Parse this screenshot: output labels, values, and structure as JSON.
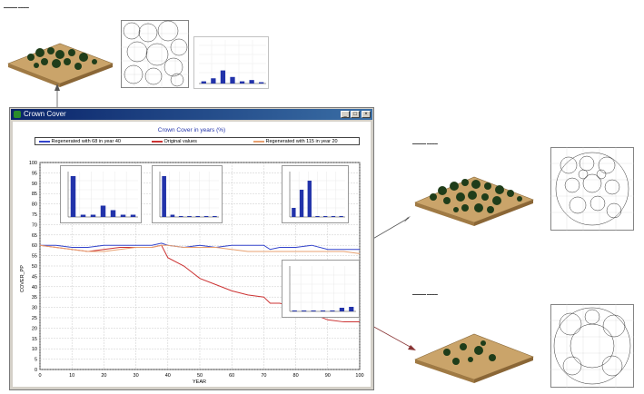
{
  "window": {
    "title": "Crown Cover"
  },
  "chart_data": {
    "type": "line",
    "title": "Crown Cover in years (%)",
    "xlabel": "YEAR",
    "ylabel": "COVER_PP",
    "xlim": [
      0,
      100
    ],
    "ylim": [
      0,
      100
    ],
    "xticks": [
      0,
      10,
      20,
      30,
      40,
      50,
      60,
      70,
      80,
      90,
      100
    ],
    "yticks": [
      0,
      5,
      10,
      15,
      20,
      25,
      30,
      35,
      40,
      45,
      50,
      55,
      60,
      65,
      70,
      75,
      80,
      85,
      90,
      95,
      100
    ],
    "grid": true,
    "legend_position": "top",
    "x": [
      0,
      5,
      10,
      15,
      20,
      25,
      30,
      35,
      38,
      40,
      45,
      50,
      55,
      60,
      65,
      70,
      72,
      75,
      80,
      85,
      90,
      95,
      100
    ],
    "series": [
      {
        "name": "Regenerated with 68 in year 40",
        "color": "#3344cc",
        "values": [
          60,
          60,
          59,
          59,
          60,
          60,
          60,
          60,
          61,
          60,
          59,
          60,
          59,
          60,
          60,
          60,
          58,
          59,
          59,
          60,
          58,
          58,
          58
        ]
      },
      {
        "name": "Original values",
        "color": "#cc3333",
        "values": [
          60,
          59,
          58,
          57,
          58,
          59,
          59,
          59,
          60,
          54,
          50,
          44,
          41,
          38,
          36,
          35,
          32,
          32,
          30,
          27,
          24,
          23,
          23
        ]
      },
      {
        "name": "Regenerated with 115 in year 20",
        "color": "#e8a070",
        "values": [
          60,
          59,
          58,
          57,
          57,
          58,
          59,
          59,
          60,
          60,
          59,
          59,
          59,
          58,
          57,
          57,
          57,
          57,
          57,
          57,
          57,
          57,
          56
        ]
      }
    ]
  },
  "insets": [
    {
      "bars": [
        0.9,
        0.05,
        0.05,
        0.25,
        0.15,
        0.05,
        0.05
      ]
    },
    {
      "bars": [
        0.9,
        0.05,
        0.02,
        0.02,
        0.02,
        0.02,
        0.02
      ]
    },
    {
      "bars": [
        0.2,
        0.6,
        0.8,
        0.02,
        0.02,
        0.02,
        0.02
      ]
    },
    {
      "bars": [
        0.02,
        0.02,
        0.02,
        0.02,
        0.02,
        0.08,
        0.1
      ]
    }
  ],
  "top_mini_bars": [
    0.05,
    0.12,
    0.3,
    0.15,
    0.05,
    0.08,
    0.03
  ]
}
